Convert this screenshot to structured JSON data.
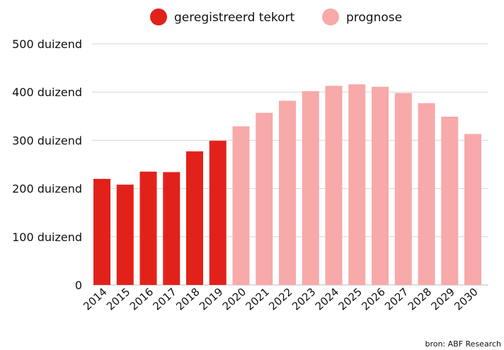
{
  "chart_data": {
    "type": "bar",
    "categories": [
      "2014",
      "2015",
      "2016",
      "2017",
      "2018",
      "2019",
      "2020",
      "2021",
      "2022",
      "2023",
      "2024",
      "2025",
      "2026",
      "2027",
      "2028",
      "2029",
      "2030"
    ],
    "series": [
      {
        "name": "geregistreerd tekort",
        "color": "#e3211b",
        "values": [
          220,
          208,
          235,
          234,
          277,
          299,
          null,
          null,
          null,
          null,
          null,
          null,
          null,
          null,
          null,
          null,
          null
        ]
      },
      {
        "name": "prognose",
        "color": "#f8a9a9",
        "values": [
          null,
          null,
          null,
          null,
          null,
          null,
          329,
          357,
          382,
          402,
          413,
          416,
          411,
          398,
          377,
          349,
          313
        ]
      }
    ],
    "ylim": [
      0,
      500
    ],
    "yticks": [
      0,
      100,
      200,
      300,
      400,
      500
    ],
    "ytick_labels": [
      "0",
      "100 duizend",
      "200 duizend",
      "300 duizend",
      "400 duizend",
      "500 duizend"
    ],
    "grid": true,
    "legend_position": "top-center",
    "source": "bron: ABF Research"
  }
}
